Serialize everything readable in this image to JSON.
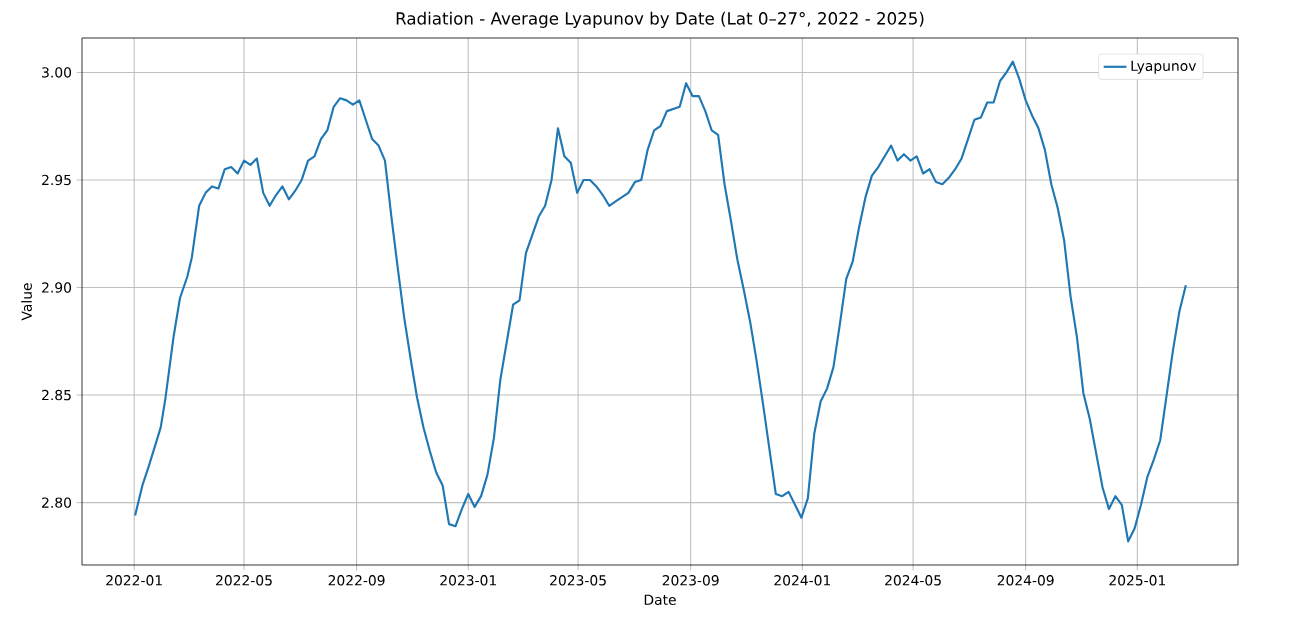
{
  "chart_data": {
    "type": "line",
    "title": "Radiation - Average  Lyapunov by Date (Lat 0–27°, 2022 - 2025)",
    "xlabel": "Date",
    "ylabel": "Value",
    "x": [
      "2022-01-02",
      "2022-01-10",
      "2022-01-17",
      "2022-01-30",
      "2022-02-04",
      "2022-02-13",
      "2022-02-20",
      "2022-02-28",
      "2022-03-05",
      "2022-03-13",
      "2022-03-20",
      "2022-03-27",
      "2022-04-03",
      "2022-04-10",
      "2022-04-17",
      "2022-04-24",
      "2022-05-01",
      "2022-05-08",
      "2022-05-15",
      "2022-05-22",
      "2022-05-29",
      "2022-06-05",
      "2022-06-12",
      "2022-06-19",
      "2022-06-26",
      "2022-07-03",
      "2022-07-10",
      "2022-07-17",
      "2022-07-24",
      "2022-07-31",
      "2022-08-07",
      "2022-08-14",
      "2022-08-21",
      "2022-08-28",
      "2022-09-04",
      "2022-09-11",
      "2022-09-18",
      "2022-09-25",
      "2022-10-02",
      "2022-10-09",
      "2022-10-16",
      "2022-10-23",
      "2022-10-30",
      "2022-11-06",
      "2022-11-13",
      "2022-11-20",
      "2022-11-27",
      "2022-12-04",
      "2022-12-11",
      "2022-12-18",
      "2022-12-25",
      "2023-01-01",
      "2023-01-08",
      "2023-01-15",
      "2023-01-22",
      "2023-01-29",
      "2023-02-05",
      "2023-02-19",
      "2023-02-26",
      "2023-03-05",
      "2023-03-19",
      "2023-03-26",
      "2023-04-02",
      "2023-04-09",
      "2023-04-16",
      "2023-04-23",
      "2023-04-30",
      "2023-05-07",
      "2023-05-14",
      "2023-05-21",
      "2023-05-28",
      "2023-06-04",
      "2023-06-11",
      "2023-06-18",
      "2023-06-25",
      "2023-07-02",
      "2023-07-09",
      "2023-07-16",
      "2023-07-23",
      "2023-07-30",
      "2023-08-06",
      "2023-08-13",
      "2023-08-20",
      "2023-08-27",
      "2023-09-03",
      "2023-09-10",
      "2023-09-17",
      "2023-09-24",
      "2023-10-01",
      "2023-10-08",
      "2023-10-15",
      "2023-10-22",
      "2023-10-29",
      "2023-11-05",
      "2023-11-12",
      "2023-11-19",
      "2023-11-26",
      "2023-12-03",
      "2023-12-10",
      "2023-12-17",
      "2023-12-24",
      "2023-12-31",
      "2024-01-07",
      "2024-01-14",
      "2024-01-21",
      "2024-01-28",
      "2024-02-04",
      "2024-02-11",
      "2024-02-18",
      "2024-02-25",
      "2024-03-03",
      "2024-03-10",
      "2024-03-17",
      "2024-03-24",
      "2024-03-31",
      "2024-04-07",
      "2024-04-14",
      "2024-04-21",
      "2024-04-28",
      "2024-05-05",
      "2024-05-12",
      "2024-05-19",
      "2024-05-26",
      "2024-06-02",
      "2024-06-09",
      "2024-06-16",
      "2024-06-23",
      "2024-06-30",
      "2024-07-07",
      "2024-07-14",
      "2024-07-21",
      "2024-07-28",
      "2024-08-04",
      "2024-08-11",
      "2024-08-18",
      "2024-08-25",
      "2024-09-01",
      "2024-09-08",
      "2024-09-15",
      "2024-09-22",
      "2024-09-29",
      "2024-10-06",
      "2024-10-13",
      "2024-10-20",
      "2024-10-27",
      "2024-11-03",
      "2024-11-10",
      "2024-11-17",
      "2024-11-24",
      "2024-12-01",
      "2024-12-08",
      "2024-12-15",
      "2024-12-22",
      "2024-12-29",
      "2025-01-05",
      "2025-01-12",
      "2025-01-19",
      "2025-01-26",
      "2025-02-02",
      "2025-02-09",
      "2025-02-16",
      "2025-02-23"
    ],
    "series": [
      {
        "name": "Lyapunov",
        "color": "#1f77b4",
        "values": [
          2.794,
          2.808,
          2.817,
          2.835,
          2.848,
          2.877,
          2.895,
          2.905,
          2.914,
          2.938,
          2.944,
          2.947,
          2.946,
          2.955,
          2.956,
          2.953,
          2.959,
          2.957,
          2.96,
          2.944,
          2.938,
          2.943,
          2.947,
          2.941,
          2.945,
          2.95,
          2.959,
          2.961,
          2.969,
          2.973,
          2.984,
          2.988,
          2.987,
          2.985,
          2.987,
          2.978,
          2.969,
          2.966,
          2.959,
          2.933,
          2.909,
          2.886,
          2.867,
          2.849,
          2.835,
          2.824,
          2.814,
          2.808,
          2.79,
          2.789,
          2.797,
          2.804,
          2.798,
          2.803,
          2.813,
          2.83,
          2.857,
          2.892,
          2.894,
          2.916,
          2.933,
          2.938,
          2.95,
          2.974,
          2.961,
          2.958,
          2.944,
          2.95,
          2.95,
          2.947,
          2.943,
          2.938,
          2.94,
          2.942,
          2.944,
          2.949,
          2.95,
          2.964,
          2.973,
          2.975,
          2.982,
          2.983,
          2.984,
          2.995,
          2.989,
          2.989,
          2.982,
          2.973,
          2.971,
          2.948,
          2.931,
          2.913,
          2.899,
          2.884,
          2.866,
          2.846,
          2.825,
          2.804,
          2.803,
          2.805,
          2.799,
          2.793,
          2.802,
          2.832,
          2.847,
          2.853,
          2.863,
          2.883,
          2.904,
          2.912,
          2.928,
          2.942,
          2.952,
          2.956,
          2.961,
          2.966,
          2.959,
          2.962,
          2.959,
          2.961,
          2.953,
          2.955,
          2.949,
          2.948,
          2.951,
          2.955,
          2.96,
          2.969,
          2.978,
          2.979,
          2.986,
          2.986,
          2.996,
          3.0,
          3.005,
          2.997,
          2.987,
          2.98,
          2.974,
          2.964,
          2.948,
          2.937,
          2.922,
          2.896,
          2.877,
          2.851,
          2.839,
          2.823,
          2.807,
          2.797,
          2.803,
          2.799,
          2.782,
          2.788,
          2.799,
          2.812,
          2.82,
          2.829,
          2.85,
          2.871,
          2.889,
          2.901
        ]
      }
    ],
    "xlim": [
      "2021-11-05",
      "2025-04-21"
    ],
    "ylim": [
      2.771,
      3.016
    ],
    "xticks": [
      "2022-01",
      "2022-05",
      "2022-09",
      "2023-01",
      "2023-05",
      "2023-09",
      "2024-01",
      "2024-05",
      "2024-09",
      "2025-01"
    ],
    "yticks": [
      {
        "value": 2.8,
        "label": "2.80"
      },
      {
        "value": 2.85,
        "label": "2.85"
      },
      {
        "value": 2.9,
        "label": "2.90"
      },
      {
        "value": 2.95,
        "label": "2.95"
      },
      {
        "value": 3.0,
        "label": "3.00"
      }
    ],
    "grid": true,
    "legend": "top right",
    "line_style": "solid"
  }
}
